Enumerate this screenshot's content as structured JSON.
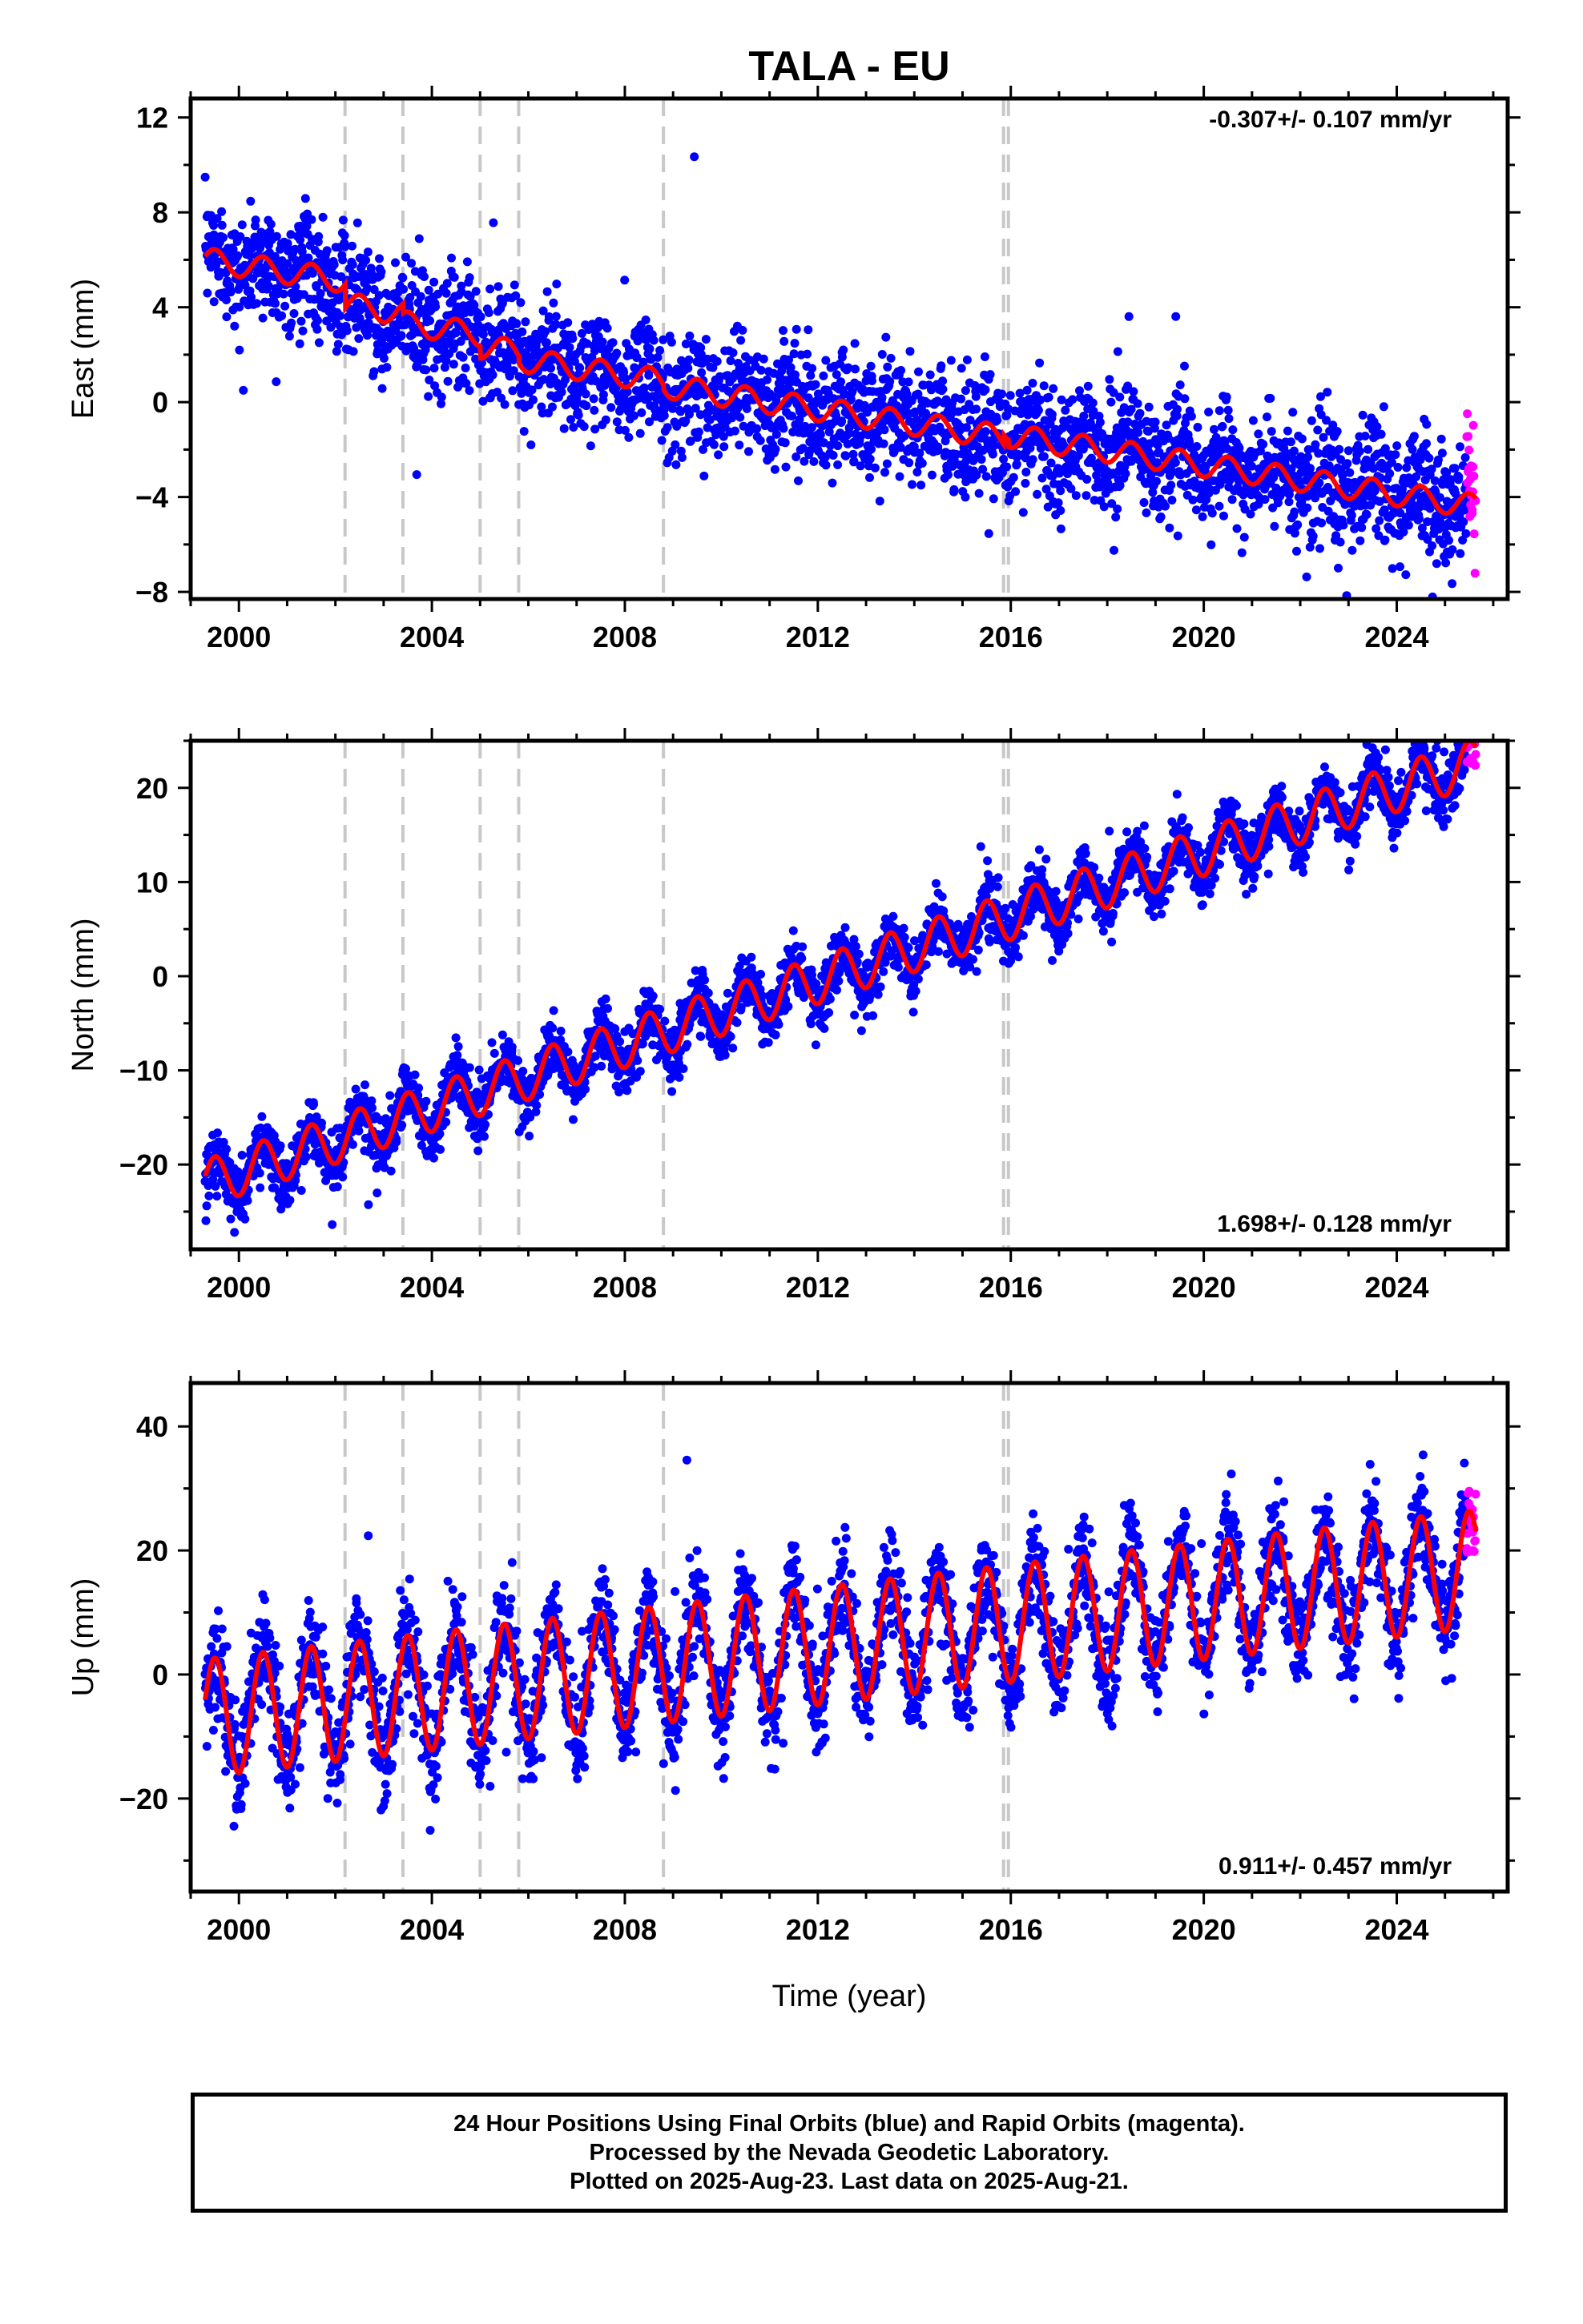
{
  "chart_data": {
    "type": "scatter",
    "title": "TALA - EU",
    "xlabel": "Time (year)",
    "xlim": [
      1999.0,
      2026.3
    ],
    "xticks": [
      2000,
      2004,
      2008,
      2012,
      2016,
      2020,
      2024
    ],
    "x_tick_labels": [
      "2000",
      "2004",
      "2008",
      "2012",
      "2016",
      "2020",
      "2024"
    ],
    "data_start": 1999.3,
    "data_end": 2025.64,
    "rapid_start": 2025.45,
    "grid": false,
    "equipment_change_epochs": [
      2002.2,
      2003.4,
      2005.0,
      2005.8,
      2008.8,
      2015.85,
      2015.95
    ],
    "colors": {
      "final_orbits": "#0000ff",
      "rapid_orbits": "#ff00ff",
      "model": "#ff0000",
      "breaks": "#c8c8c8"
    },
    "panels": [
      {
        "ylabel": "East (mm)",
        "ylim": [
          -8.3,
          12.8
        ],
        "yticks": [
          -8,
          -4,
          0,
          4,
          8,
          12
        ],
        "y_tick_labels": [
          "−8",
          "−4",
          "0",
          "4",
          "8",
          "12"
        ],
        "rate_label": "-0.307+/- 0.107 mm/yr",
        "rate_position": "top-right",
        "model": {
          "intercept_mm": 6.0,
          "trend_mm_per_yr": -0.307,
          "annual_amplitude_mm": 0.5,
          "offsets_mm": [
            -1.0,
            -0.4,
            -0.5,
            -0.3,
            -0.2,
            0.4,
            -0.3
          ]
        },
        "scatter_sd_mm": 1.2
      },
      {
        "ylabel": "North (mm)",
        "ylim": [
          -29,
          25
        ],
        "yticks": [
          -20,
          -10,
          0,
          10,
          20
        ],
        "y_tick_labels": [
          "−20",
          "−10",
          "0",
          "10",
          "20"
        ],
        "rate_label": "1.698+/- 0.128 mm/yr",
        "rate_position": "bottom-right",
        "model": {
          "intercept_mm": -22.0,
          "trend_mm_per_yr": 1.698,
          "annual_amplitude_mm": 2.5,
          "offsets_mm": [
            0,
            0,
            0,
            0,
            0,
            0,
            0
          ]
        },
        "scatter_sd_mm": 1.5
      },
      {
        "ylabel": "Up (mm)",
        "ylim": [
          -35,
          47
        ],
        "yticks": [
          -20,
          0,
          20,
          40
        ],
        "y_tick_labels": [
          "−20",
          "0",
          "20",
          "40"
        ],
        "rate_label": "0.911+/- 0.457 mm/yr",
        "rate_position": "bottom-right",
        "model": {
          "intercept_mm": -7.0,
          "trend_mm_per_yr": 0.911,
          "annual_amplitude_mm": 9.5,
          "offsets_mm": [
            0,
            0,
            0,
            0,
            0,
            0,
            0
          ]
        },
        "scatter_sd_mm": 4.0
      }
    ],
    "notes": [
      "24 Hour Positions Using Final Orbits (blue) and Rapid Orbits (magenta).",
      "Processed by the Nevada Geodetic Laboratory.",
      "Plotted on 2025-Aug-23. Last data on 2025-Aug-21."
    ]
  }
}
